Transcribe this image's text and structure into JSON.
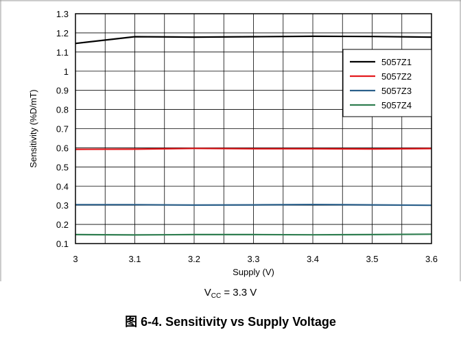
{
  "chart_data": {
    "type": "line",
    "xlabel": "Supply (V)",
    "ylabel": "Sensitivity (%D/mT)",
    "xlim": [
      3,
      3.6
    ],
    "ylim": [
      0.1,
      1.3
    ],
    "x_ticks": [
      "3",
      "3.1",
      "3.2",
      "3.3",
      "3.4",
      "3.5",
      "3.6"
    ],
    "y_ticks": [
      "0.1",
      "0.2",
      "0.3",
      "0.4",
      "0.5",
      "0.6",
      "0.7",
      "0.8",
      "0.9",
      "1",
      "1.1",
      "1.2",
      "1.3"
    ],
    "grid": true,
    "legend_position": "top-right",
    "x": [
      3,
      3.1,
      3.2,
      3.3,
      3.4,
      3.5,
      3.6
    ],
    "series": [
      {
        "name": "5057Z1",
        "color": "#000000",
        "values": [
          1.145,
          1.18,
          1.178,
          1.18,
          1.182,
          1.181,
          1.178
        ]
      },
      {
        "name": "5057Z2",
        "color": "#e3191c",
        "values": [
          0.592,
          0.593,
          0.597,
          0.595,
          0.595,
          0.594,
          0.596
        ]
      },
      {
        "name": "5057Z3",
        "color": "#2a5f8a",
        "values": [
          0.303,
          0.303,
          0.301,
          0.302,
          0.304,
          0.302,
          0.3
        ]
      },
      {
        "name": "5057Z4",
        "color": "#2e7d4f",
        "values": [
          0.147,
          0.145,
          0.147,
          0.147,
          0.146,
          0.147,
          0.149
        ]
      }
    ]
  },
  "condition": {
    "prefix": "V",
    "subscript": "CC",
    "suffix": " = 3.3 V"
  },
  "caption": "图 6-4. Sensitivity vs Supply Voltage"
}
